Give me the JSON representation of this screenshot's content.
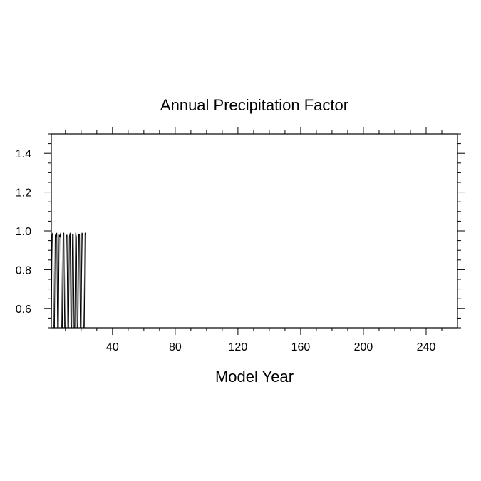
{
  "chart_data": {
    "type": "line",
    "title": "Annual Precipitation Factor",
    "xlabel": "Model Year",
    "ylabel": "",
    "xlim": [
      1,
      260
    ],
    "ylim": [
      0.5,
      1.5
    ],
    "xticks": [
      40,
      80,
      120,
      160,
      200,
      240
    ],
    "yticks": [
      0.6,
      0.8,
      1.0,
      1.2,
      1.4
    ],
    "xtick_labels": [
      "40",
      "80",
      "120",
      "160",
      "200",
      "240"
    ],
    "ytick_labels": [
      "0.6",
      "0.8",
      "1.0",
      "1.2",
      "1.4"
    ],
    "grid": false,
    "series": [
      {
        "color": "#000000",
        "x": [
          1,
          1.5,
          2,
          2.5,
          3,
          3.5,
          4,
          4.5,
          5,
          5.5,
          6,
          6.5,
          7,
          7.5,
          8,
          8.5,
          9,
          9.5,
          10,
          10.5,
          11,
          11.5,
          12,
          12.5,
          13,
          13.5,
          14,
          14.5,
          15,
          15.5,
          16,
          16.5,
          17,
          17.5,
          18,
          18.5,
          19,
          19.5,
          20,
          20.5,
          21,
          21.5,
          22,
          22.5,
          23
        ],
        "y": [
          0.5,
          0.98,
          0.99,
          0.5,
          0.5,
          0.98,
          0.97,
          0.99,
          0.5,
          0.5,
          0.98,
          0.97,
          0.99,
          0.5,
          0.5,
          0.98,
          0.99,
          0.5,
          0.5,
          0.97,
          0.98,
          0.5,
          0.5,
          0.97,
          0.99,
          0.5,
          0.5,
          0.98,
          0.98,
          0.5,
          0.5,
          0.99,
          0.97,
          0.5,
          0.5,
          0.98,
          0.98,
          0.5,
          0.5,
          0.99,
          0.98,
          0.5,
          0.5,
          0.99,
          0.98
        ]
      }
    ]
  }
}
